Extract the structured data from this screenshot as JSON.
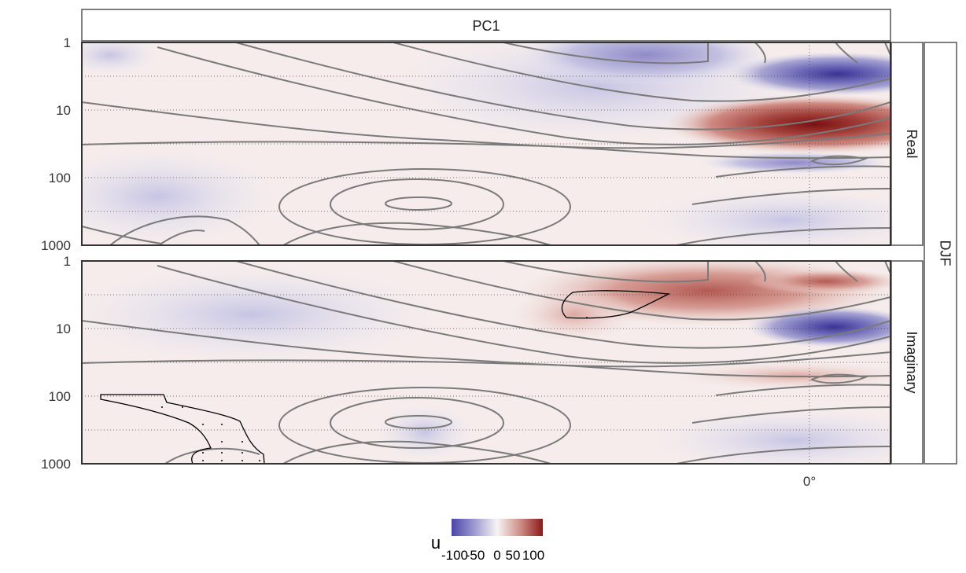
{
  "chart_data": {
    "type": "heatmap",
    "facet_title": "PC1",
    "season_label": "DJF",
    "panels": [
      {
        "label": "Real"
      },
      {
        "label": "Imaginary"
      }
    ],
    "y_axis": {
      "scale": "log",
      "reversed": true,
      "ylim": [
        1,
        1000
      ],
      "ticks": [
        1,
        10,
        100,
        1000
      ],
      "tick_labels": [
        "1",
        "10",
        "100",
        "1000"
      ],
      "minor_gridlines": [
        3,
        30,
        300
      ]
    },
    "x_axis": {
      "ticks": [
        0
      ],
      "tick_labels": [
        "0°"
      ],
      "reference_line": 0
    },
    "legend": {
      "title": "u",
      "placement": "bottom",
      "tick_labels": [
        "-100",
        "-50",
        "0",
        "50",
        "100"
      ],
      "low_color": "#4a45a8",
      "mid_color": "#f7f4f4",
      "high_color": "#8b1a1a"
    },
    "colors": {
      "negative": "#4a45a8",
      "positive": "#8b1a1a",
      "contour_line": "#7a7a7a",
      "significance_line": "#000000"
    },
    "grid": "dotted, at major and minor pressure levels"
  }
}
